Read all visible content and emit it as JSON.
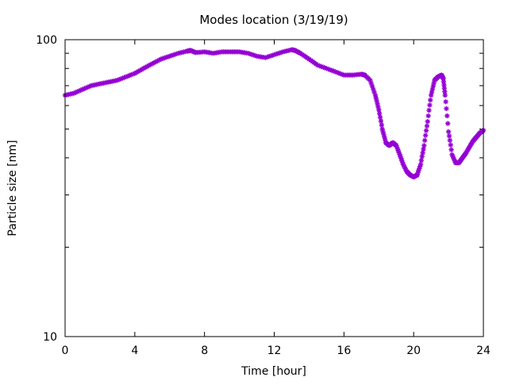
{
  "chart_data": {
    "type": "scatter",
    "title": "Modes location (3/19/19)",
    "xlabel": "Time [hour]",
    "ylabel": "Particle size [nm]",
    "x_ticks": [
      0,
      4,
      8,
      12,
      16,
      20,
      24
    ],
    "y_ticks": [
      10,
      100
    ],
    "y_minor_ticks": [
      20,
      30,
      40,
      50,
      60,
      70,
      80,
      90
    ],
    "xlim": [
      0,
      24
    ],
    "ylim": [
      10,
      100
    ],
    "y_scale": "log",
    "grid": false,
    "legend": "none",
    "marker": "asterisk",
    "color": "#9400d3",
    "series": [
      {
        "x": [
          0,
          0.5,
          1,
          1.5,
          2,
          2.5,
          3,
          3.5,
          4,
          4.5,
          5,
          5.5,
          6,
          6.5,
          7,
          7.2,
          7.5,
          8,
          8.5,
          9,
          9.5,
          10,
          10.5,
          11,
          11.5,
          12,
          12.5,
          13,
          13.2,
          13.5,
          14,
          14.5,
          15,
          15.5,
          16,
          16.5,
          17,
          17.2,
          17.5,
          17.8,
          18,
          18.2,
          18.4,
          18.6,
          18.8,
          19,
          19.2,
          19.4,
          19.6,
          19.8,
          20,
          20.2,
          20.4,
          20.6,
          20.8,
          21,
          21.2,
          21.4,
          21.6,
          21.7,
          21.8,
          22,
          22.2,
          22.4,
          22.6,
          22.8,
          23,
          23.2,
          23.4,
          23.6,
          23.8,
          24
        ],
        "y": [
          65,
          66,
          68,
          70,
          71,
          72,
          73,
          75,
          77,
          80,
          83,
          86,
          88,
          90,
          91.5,
          92,
          90.5,
          91,
          90,
          91,
          91,
          91,
          90,
          88,
          87,
          89,
          91,
          92.5,
          92,
          90,
          86,
          82,
          80,
          78,
          76,
          76,
          76.5,
          76,
          73,
          65,
          58,
          50,
          45,
          44,
          45,
          44,
          41,
          38,
          36,
          35,
          34.5,
          35,
          38,
          44,
          53,
          65,
          73,
          75,
          76,
          74,
          65,
          49,
          41,
          38.5,
          38.5,
          40,
          41.5,
          43.5,
          45.5,
          47,
          48.5,
          49.5
        ]
      }
    ]
  }
}
